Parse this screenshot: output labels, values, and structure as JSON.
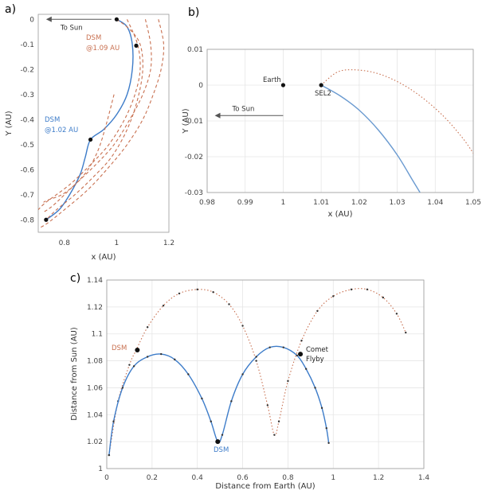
{
  "chart_data": [
    {
      "panel": "a)",
      "type": "line",
      "xlabel": "x (AU)",
      "ylabel": "Y (AU)",
      "xlim": [
        0.7,
        1.2
      ],
      "ylim": [
        -0.85,
        0.02
      ],
      "xticks": [
        "0.8",
        "1",
        "1.2"
      ],
      "yticks": [
        "0",
        "-0.1",
        "-0.2",
        "-0.3",
        "-0.4",
        "-0.5",
        "-0.6",
        "-0.7",
        "-0.8"
      ],
      "grid": false,
      "series": [
        {
          "color": "#3d7cc9",
          "style": "solid",
          "x": [
            1.0,
            1.04,
            1.06,
            1.06,
            1.04,
            1.0,
            0.95,
            0.9,
            0.88,
            0.86,
            0.82,
            0.78,
            0.73
          ],
          "y": [
            0.0,
            -0.03,
            -0.1,
            -0.2,
            -0.3,
            -0.38,
            -0.44,
            -0.48,
            -0.55,
            -0.62,
            -0.7,
            -0.76,
            -0.8
          ]
        },
        {
          "color": "#c87050",
          "style": "dashed",
          "x": [
            1.0,
            1.05,
            1.09,
            1.1,
            1.08,
            1.04,
            0.98,
            0.91,
            0.84,
            0.77,
            0.73
          ],
          "y": [
            0.0,
            -0.04,
            -0.1,
            -0.2,
            -0.32,
            -0.44,
            -0.55,
            -0.63,
            -0.7,
            -0.76,
            -0.8
          ]
        },
        {
          "color": "#c87050",
          "style": "dashed",
          "x": [
            1.04,
            1.08,
            1.09,
            1.07,
            1.03,
            0.97,
            0.9,
            0.82,
            0.73,
            0.7
          ],
          "y": [
            0.0,
            -0.1,
            -0.2,
            -0.3,
            -0.4,
            -0.5,
            -0.58,
            -0.66,
            -0.73,
            -0.76
          ]
        },
        {
          "color": "#c87050",
          "style": "dashed",
          "x": [
            1.11,
            1.13,
            1.13,
            1.1,
            1.05,
            0.99,
            0.92,
            0.84,
            0.76,
            0.72
          ],
          "y": [
            0.0,
            -0.1,
            -0.2,
            -0.3,
            -0.4,
            -0.5,
            -0.58,
            -0.66,
            -0.74,
            -0.77
          ]
        },
        {
          "color": "#c87050",
          "style": "dashed",
          "x": [
            1.16,
            1.18,
            1.17,
            1.14,
            1.1,
            1.04,
            0.97,
            0.89,
            0.8,
            0.74,
            0.71
          ],
          "y": [
            0.0,
            -0.1,
            -0.2,
            -0.3,
            -0.4,
            -0.5,
            -0.59,
            -0.68,
            -0.76,
            -0.81,
            -0.83
          ]
        },
        {
          "color": "#c87050",
          "style": "dashed",
          "x": [
            0.99,
            0.96,
            0.93,
            0.89,
            0.84,
            0.79,
            0.74,
            0.72
          ],
          "y": [
            -0.3,
            -0.42,
            -0.52,
            -0.6,
            -0.66,
            -0.7,
            -0.72,
            -0.73
          ]
        }
      ],
      "markers": [
        {
          "x": 1.0,
          "y": 0.0
        },
        {
          "x": 1.075,
          "y": -0.105
        },
        {
          "x": 0.9,
          "y": -0.48
        },
        {
          "x": 0.73,
          "y": -0.8
        }
      ],
      "arrow": {
        "label": "To Sun",
        "x_from": 0.98,
        "x_to": 0.73,
        "y": 0.0
      },
      "annotations": [
        {
          "text": "DSM",
          "color": "#c87050",
          "x": 0.99,
          "y": -0.075
        },
        {
          "text": "@1.09 AU",
          "color": "#c87050",
          "x": 0.99,
          "y": -0.11
        },
        {
          "text": "DSM",
          "color": "#3d7cc9",
          "x": 0.72,
          "y": -0.4
        },
        {
          "text": "@1.02 AU",
          "color": "#3d7cc9",
          "x": 0.72,
          "y": -0.435
        }
      ]
    },
    {
      "panel": "b)",
      "type": "line",
      "xlabel": "x (AU)",
      "ylabel": "Y (AU)",
      "xlim": [
        0.98,
        1.05
      ],
      "ylim": [
        -0.03,
        0.01
      ],
      "xticks": [
        "0.98",
        "0.99",
        "1",
        "1.01",
        "1.02",
        "1.03",
        "1.04",
        "1.05"
      ],
      "yticks": [
        "0.01",
        "0",
        "-0.01",
        "-0.02",
        "-0.03"
      ],
      "grid": true,
      "series": [
        {
          "color": "#c87050",
          "style": "dotted",
          "x": [
            1.01,
            1.014,
            1.018,
            1.024,
            1.03,
            1.036,
            1.042,
            1.047,
            1.05
          ],
          "y": [
            0.0,
            0.0035,
            0.0043,
            0.0035,
            0.001,
            -0.003,
            -0.0085,
            -0.0145,
            -0.019
          ]
        },
        {
          "color": "#6a9ad0",
          "style": "solid",
          "x": [
            1.01,
            1.015,
            1.02,
            1.025,
            1.03,
            1.034,
            1.036
          ],
          "y": [
            0.0,
            -0.003,
            -0.007,
            -0.0125,
            -0.0195,
            -0.0265,
            -0.03
          ]
        }
      ],
      "markers": [
        {
          "x": 1.0,
          "y": 0.0,
          "label": "Earth"
        },
        {
          "x": 1.01,
          "y": 0.0,
          "label": "SEL2"
        }
      ],
      "arrow": {
        "label": "To Sun",
        "x_from": 1.0,
        "x_to": 0.982,
        "y": -0.0085
      }
    },
    {
      "panel": "c)",
      "type": "line",
      "xlabel": "Distance from Earth (AU)",
      "ylabel": "Distance from Sun (AU)",
      "xlim": [
        0,
        1.4
      ],
      "ylim": [
        1.0,
        1.14
      ],
      "xticks": [
        "0",
        "0.2",
        "0.4",
        "0.6",
        "0.8",
        "1",
        "1.2",
        "1.4"
      ],
      "yticks": [
        "1",
        "1.02",
        "1.04",
        "1.06",
        "1.08",
        "1.1",
        "1.12",
        "1.14"
      ],
      "grid": true,
      "series": [
        {
          "color": "#c87050",
          "style": "dotted",
          "x": [
            0.01,
            0.05,
            0.1,
            0.13,
            0.18,
            0.25,
            0.32,
            0.4,
            0.47,
            0.54,
            0.6,
            0.66,
            0.71,
            0.74,
            0.76,
            0.8,
            0.86,
            0.93,
            1.0,
            1.08,
            1.15,
            1.22,
            1.28,
            1.32
          ],
          "y": [
            1.01,
            1.05,
            1.077,
            1.088,
            1.105,
            1.121,
            1.13,
            1.133,
            1.131,
            1.122,
            1.106,
            1.08,
            1.047,
            1.025,
            1.035,
            1.065,
            1.095,
            1.117,
            1.128,
            1.133,
            1.133,
            1.127,
            1.115,
            1.101
          ]
        },
        {
          "color": "#3d7cc9",
          "style": "solid",
          "x": [
            0.01,
            0.03,
            0.07,
            0.12,
            0.18,
            0.24,
            0.3,
            0.36,
            0.42,
            0.46,
            0.49,
            0.51,
            0.55,
            0.6,
            0.66,
            0.72,
            0.78,
            0.84,
            0.88,
            0.92,
            0.95,
            0.97,
            0.98
          ],
          "y": [
            1.01,
            1.035,
            1.06,
            1.076,
            1.083,
            1.085,
            1.081,
            1.07,
            1.052,
            1.035,
            1.02,
            1.025,
            1.05,
            1.07,
            1.083,
            1.09,
            1.09,
            1.084,
            1.074,
            1.06,
            1.045,
            1.03,
            1.019
          ]
        }
      ],
      "markers": [
        {
          "x": 0.135,
          "y": 1.088,
          "label": "DSM",
          "color": "#c87050"
        },
        {
          "x": 0.49,
          "y": 1.02,
          "label": "DSM",
          "color": "#3d7cc9"
        },
        {
          "x": 0.855,
          "y": 1.085,
          "label": "Comet Flyby",
          "color": "#000000"
        }
      ],
      "annotations": [
        {
          "text": "DSM",
          "color": "#c87050"
        },
        {
          "text": "DSM",
          "color": "#3d7cc9"
        },
        {
          "text": "Comet",
          "color": "#222222"
        },
        {
          "text": "Flyby",
          "color": "#222222"
        }
      ]
    }
  ]
}
